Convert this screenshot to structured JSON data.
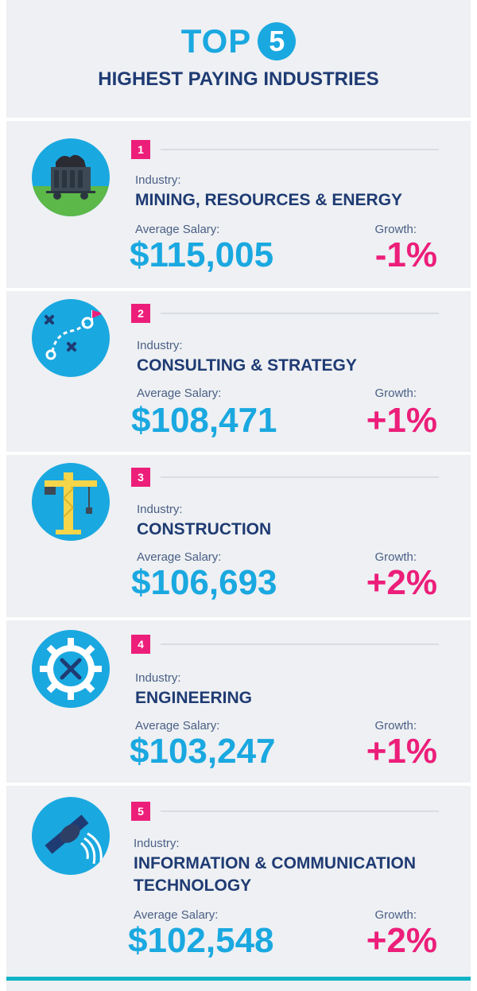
{
  "header": {
    "top_word": "TOP",
    "top_number": "5",
    "subtitle": "HIGHEST PAYING INDUSTRIES"
  },
  "labels": {
    "industry": "Industry:",
    "average_salary": "Average Salary:",
    "growth": "Growth:"
  },
  "colors": {
    "accent_blue": "#1aa8e0",
    "accent_pink": "#ec1e7a",
    "navy": "#1f3b73"
  },
  "industries": [
    {
      "rank": "1",
      "name": "MINING, RESOURCES & ENERGY",
      "salary": "$115,005",
      "growth": "-1%",
      "icon": "mining-cart-icon"
    },
    {
      "rank": "2",
      "name": "CONSULTING & STRATEGY",
      "salary": "$108,471",
      "growth": "+1%",
      "icon": "strategy-icon"
    },
    {
      "rank": "3",
      "name": "CONSTRUCTION",
      "salary": "$106,693",
      "growth": "+2%",
      "icon": "crane-icon"
    },
    {
      "rank": "4",
      "name": "ENGINEERING",
      "salary": "$103,247",
      "growth": "+1%",
      "icon": "gear-tools-icon"
    },
    {
      "rank": "5",
      "name_line1": "INFORMATION & COMMUNICATION",
      "name_line2": "TECHNOLOGY",
      "salary": "$102,548",
      "growth": "+2%",
      "icon": "satellite-icon"
    }
  ]
}
